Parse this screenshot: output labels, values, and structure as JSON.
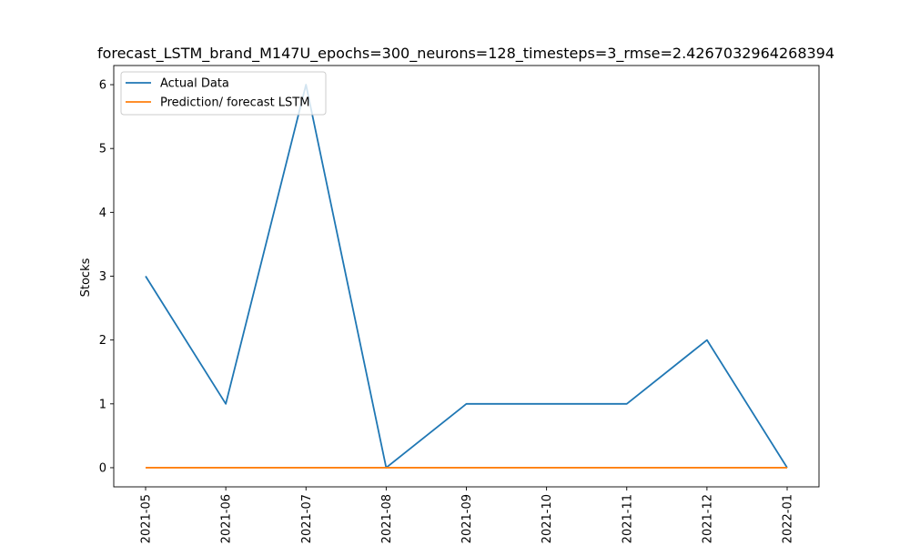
{
  "chart_data": {
    "type": "line",
    "title": "forecast_LSTM_brand_M147U_epochs=300_neurons=128_timesteps=3_rmse=2.4267032964268394",
    "xlabel": "",
    "ylabel": "Stocks",
    "x": [
      "2021-05",
      "2021-06",
      "2021-07",
      "2021-08",
      "2021-09",
      "2021-10",
      "2021-11",
      "2021-12",
      "2022-01"
    ],
    "series": [
      {
        "name": "Actual Data",
        "color": "#1f77b4",
        "values": [
          3,
          1,
          6,
          0,
          1,
          1,
          1,
          2,
          0
        ]
      },
      {
        "name": "Prediction/ forecast LSTM",
        "color": "#ff7f0e",
        "values": [
          0,
          0,
          0,
          0,
          0,
          0,
          0,
          0,
          0
        ]
      }
    ],
    "yticks": [
      0,
      1,
      2,
      3,
      4,
      5,
      6
    ],
    "ylim": [
      -0.3,
      6.3
    ],
    "grid": false,
    "legend_position": "top-left"
  }
}
